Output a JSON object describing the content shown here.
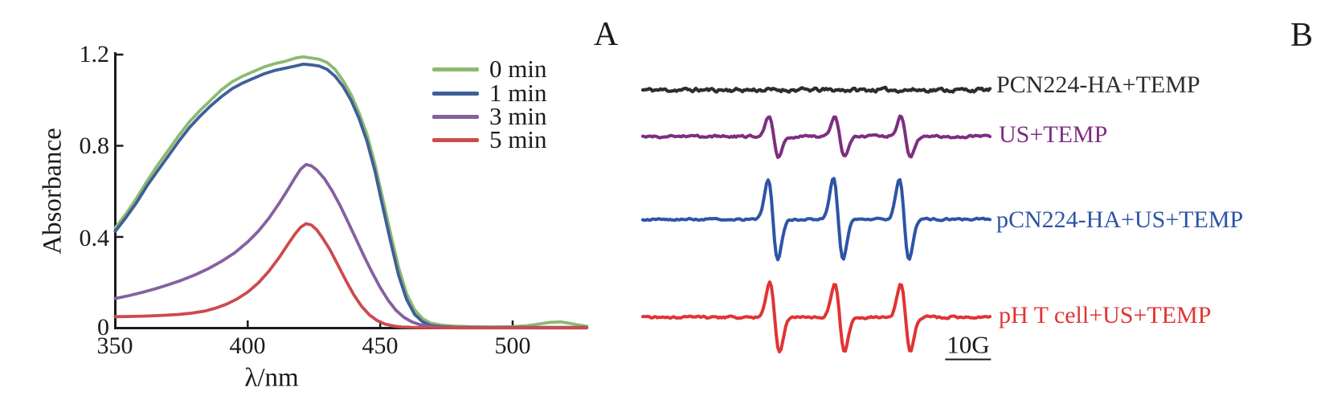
{
  "panels": {
    "a_label": "A",
    "b_label": "B"
  },
  "chart_data": [
    {
      "id": "uv_vis_absorbance",
      "type": "line",
      "xlabel": "λ/nm",
      "ylabel": "Absorbance",
      "xlim": [
        350,
        530
      ],
      "ylim": [
        0,
        1.2
      ],
      "xticks": [
        "350",
        "400",
        "450",
        "500"
      ],
      "yticks": [
        "0",
        "0.4",
        "0.8",
        "1.2"
      ],
      "grid": false,
      "legend_position": "top-right",
      "series": [
        {
          "name": "0 min",
          "color": "#8cba70",
          "points": [
            [
              350,
              0.44
            ],
            [
              354,
              0.5
            ],
            [
              358,
              0.57
            ],
            [
              362,
              0.645
            ],
            [
              366,
              0.715
            ],
            [
              370,
              0.78
            ],
            [
              374,
              0.845
            ],
            [
              378,
              0.905
            ],
            [
              382,
              0.955
            ],
            [
              386,
              1.0
            ],
            [
              390,
              1.045
            ],
            [
              394,
              1.08
            ],
            [
              398,
              1.105
            ],
            [
              402,
              1.125
            ],
            [
              406,
              1.145
            ],
            [
              410,
              1.16
            ],
            [
              414,
              1.17
            ],
            [
              418,
              1.185
            ],
            [
              421,
              1.19
            ],
            [
              424,
              1.185
            ],
            [
              427,
              1.18
            ],
            [
              430,
              1.165
            ],
            [
              433,
              1.135
            ],
            [
              436,
              1.085
            ],
            [
              439,
              1.025
            ],
            [
              442,
              0.945
            ],
            [
              445,
              0.85
            ],
            [
              448,
              0.72
            ],
            [
              451,
              0.565
            ],
            [
              454,
              0.41
            ],
            [
              457,
              0.265
            ],
            [
              460,
              0.15
            ],
            [
              463,
              0.08
            ],
            [
              466,
              0.042
            ],
            [
              469,
              0.022
            ],
            [
              473,
              0.013
            ],
            [
              478,
              0.008
            ],
            [
              484,
              0.006
            ],
            [
              492,
              0.005
            ],
            [
              500,
              0.006
            ],
            [
              505,
              0.01
            ],
            [
              510,
              0.018
            ],
            [
              514,
              0.025
            ],
            [
              518,
              0.027
            ],
            [
              522,
              0.02
            ],
            [
              525,
              0.013
            ],
            [
              528,
              0.008
            ]
          ]
        },
        {
          "name": "1 min",
          "color": "#3e5f99",
          "points": [
            [
              350,
              0.425
            ],
            [
              354,
              0.485
            ],
            [
              358,
              0.55
            ],
            [
              362,
              0.625
            ],
            [
              366,
              0.69
            ],
            [
              370,
              0.755
            ],
            [
              374,
              0.82
            ],
            [
              378,
              0.88
            ],
            [
              382,
              0.93
            ],
            [
              386,
              0.975
            ],
            [
              390,
              1.015
            ],
            [
              394,
              1.05
            ],
            [
              398,
              1.075
            ],
            [
              402,
              1.095
            ],
            [
              406,
              1.115
            ],
            [
              410,
              1.13
            ],
            [
              414,
              1.14
            ],
            [
              418,
              1.15
            ],
            [
              421,
              1.158
            ],
            [
              424,
              1.155
            ],
            [
              427,
              1.15
            ],
            [
              430,
              1.135
            ],
            [
              433,
              1.105
            ],
            [
              436,
              1.06
            ],
            [
              439,
              1.0
            ],
            [
              442,
              0.92
            ],
            [
              445,
              0.82
            ],
            [
              448,
              0.69
            ],
            [
              451,
              0.53
            ],
            [
              454,
              0.375
            ],
            [
              457,
              0.23
            ],
            [
              460,
              0.125
            ],
            [
              463,
              0.06
            ],
            [
              466,
              0.028
            ],
            [
              469,
              0.012
            ],
            [
              473,
              0.006
            ],
            [
              478,
              0.004
            ],
            [
              486,
              0.003
            ],
            [
              500,
              0.003
            ],
            [
              514,
              0.003
            ],
            [
              528,
              0.003
            ]
          ]
        },
        {
          "name": "3 min",
          "color": "#85619f",
          "points": [
            [
              350,
              0.13
            ],
            [
              355,
              0.142
            ],
            [
              360,
              0.156
            ],
            [
              365,
              0.172
            ],
            [
              370,
              0.19
            ],
            [
              375,
              0.21
            ],
            [
              380,
              0.233
            ],
            [
              385,
              0.26
            ],
            [
              390,
              0.292
            ],
            [
              395,
              0.33
            ],
            [
              400,
              0.378
            ],
            [
              404,
              0.425
            ],
            [
              408,
              0.482
            ],
            [
              412,
              0.55
            ],
            [
              415,
              0.605
            ],
            [
              418,
              0.663
            ],
            [
              420,
              0.698
            ],
            [
              422,
              0.718
            ],
            [
              424,
              0.712
            ],
            [
              426,
              0.695
            ],
            [
              429,
              0.655
            ],
            [
              432,
              0.6
            ],
            [
              435,
              0.535
            ],
            [
              438,
              0.462
            ],
            [
              441,
              0.388
            ],
            [
              444,
              0.313
            ],
            [
              447,
              0.243
            ],
            [
              450,
              0.178
            ],
            [
              453,
              0.122
            ],
            [
              456,
              0.078
            ],
            [
              459,
              0.047
            ],
            [
              462,
              0.027
            ],
            [
              465,
              0.015
            ],
            [
              468,
              0.008
            ],
            [
              472,
              0.004
            ],
            [
              478,
              0.002
            ],
            [
              490,
              0.002
            ],
            [
              510,
              0.001
            ],
            [
              528,
              0.001
            ]
          ]
        },
        {
          "name": "5 min",
          "color": "#cc4a4e",
          "points": [
            [
              350,
              0.05
            ],
            [
              356,
              0.051
            ],
            [
              362,
              0.053
            ],
            [
              368,
              0.056
            ],
            [
              374,
              0.06
            ],
            [
              379,
              0.066
            ],
            [
              384,
              0.075
            ],
            [
              388,
              0.088
            ],
            [
              392,
              0.105
            ],
            [
              396,
              0.128
            ],
            [
              400,
              0.158
            ],
            [
              404,
              0.198
            ],
            [
              408,
              0.25
            ],
            [
              412,
              0.312
            ],
            [
              415,
              0.365
            ],
            [
              418,
              0.415
            ],
            [
              420,
              0.443
            ],
            [
              422,
              0.458
            ],
            [
              424,
              0.452
            ],
            [
              426,
              0.432
            ],
            [
              428,
              0.4
            ],
            [
              431,
              0.345
            ],
            [
              434,
              0.278
            ],
            [
              437,
              0.21
            ],
            [
              440,
              0.147
            ],
            [
              443,
              0.095
            ],
            [
              446,
              0.057
            ],
            [
              449,
              0.032
            ],
            [
              452,
              0.017
            ],
            [
              455,
              0.009
            ],
            [
              458,
              0.005
            ],
            [
              462,
              0.003
            ],
            [
              468,
              0.002
            ],
            [
              480,
              0.001
            ],
            [
              500,
              0.001
            ],
            [
              528,
              0.001
            ]
          ]
        }
      ]
    },
    {
      "id": "epr_spectra",
      "type": "line",
      "scale_bar": "10G",
      "peaks_per_trace": 3,
      "traces": [
        {
          "label": "PCN224-HA+TEMP",
          "color": "#2d2d2d",
          "signal": 0,
          "noise": 1.0,
          "peaks": [
            0.377,
            0.567,
            0.757
          ]
        },
        {
          "label": "US+TEMP",
          "color": "#7e2d82",
          "signal": 0.5,
          "noise": 0.6,
          "peaks": [
            0.377,
            0.567,
            0.757
          ]
        },
        {
          "label": "pCN224-HA+US+TEMP",
          "color": "#2e54a5",
          "signal": 1.0,
          "noise": 0.5,
          "peaks": [
            0.375,
            0.563,
            0.753
          ]
        },
        {
          "label": "pH T cell+US+TEMP",
          "color": "#e23333",
          "signal": 0.84,
          "noise": 0.6,
          "peaks": [
            0.38,
            0.567,
            0.757
          ]
        }
      ]
    }
  ]
}
